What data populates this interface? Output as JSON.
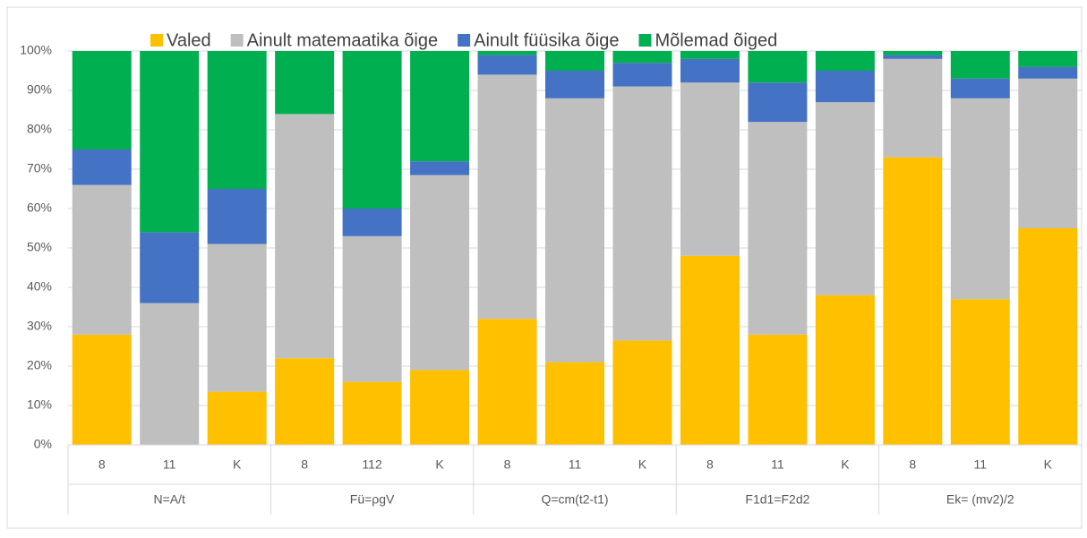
{
  "chart_data": {
    "type": "stacked_bar",
    "categories": [
      "8",
      "11",
      "K",
      "8",
      "112",
      "K",
      "8",
      "11",
      "K",
      "8",
      "11",
      "K",
      "8",
      "11",
      "K"
    ],
    "groups": [
      "N=A/t",
      "Fü=ρgV",
      "Q=cm(t2-t1)",
      "F1d1=F2d2",
      "Ek= (mv2)/2"
    ],
    "series": [
      {
        "name": "Valed",
        "color": "#ffc000",
        "values": [
          28,
          0,
          13.5,
          22,
          16,
          19,
          32,
          21,
          26.5,
          48,
          28,
          38,
          73,
          37,
          55
        ]
      },
      {
        "name": "Ainult matemaatika õige",
        "color": "#bfbfbf",
        "values": [
          38,
          36,
          37.5,
          62,
          37,
          49.5,
          62,
          67,
          64.5,
          44,
          54,
          49,
          25,
          51,
          38
        ]
      },
      {
        "name": "Ainult füüsika õige",
        "color": "#4472c4",
        "values": [
          9,
          18,
          14,
          0,
          7,
          3.5,
          5,
          7,
          6,
          6,
          10,
          8,
          1,
          5,
          3
        ]
      },
      {
        "name": "Mõlemad õiged",
        "color": "#00b050",
        "values": [
          25,
          46,
          35,
          16,
          40,
          28,
          1,
          5,
          3,
          2,
          8,
          5,
          1,
          7,
          4
        ]
      }
    ],
    "ylim": [
      0,
      100
    ],
    "yticks": [
      {
        "value": 0,
        "label": "0%"
      },
      {
        "value": 10,
        "label": "10%"
      },
      {
        "value": 20,
        "label": "20%"
      },
      {
        "value": 30,
        "label": "30%"
      },
      {
        "value": 40,
        "label": "40%"
      },
      {
        "value": 50,
        "label": "50%"
      },
      {
        "value": 60,
        "label": "60%"
      },
      {
        "value": 70,
        "label": "70%"
      },
      {
        "value": 80,
        "label": "80%"
      },
      {
        "value": 90,
        "label": "90%"
      },
      {
        "value": 100,
        "label": "100%"
      }
    ],
    "grid": true,
    "legend": "top"
  }
}
